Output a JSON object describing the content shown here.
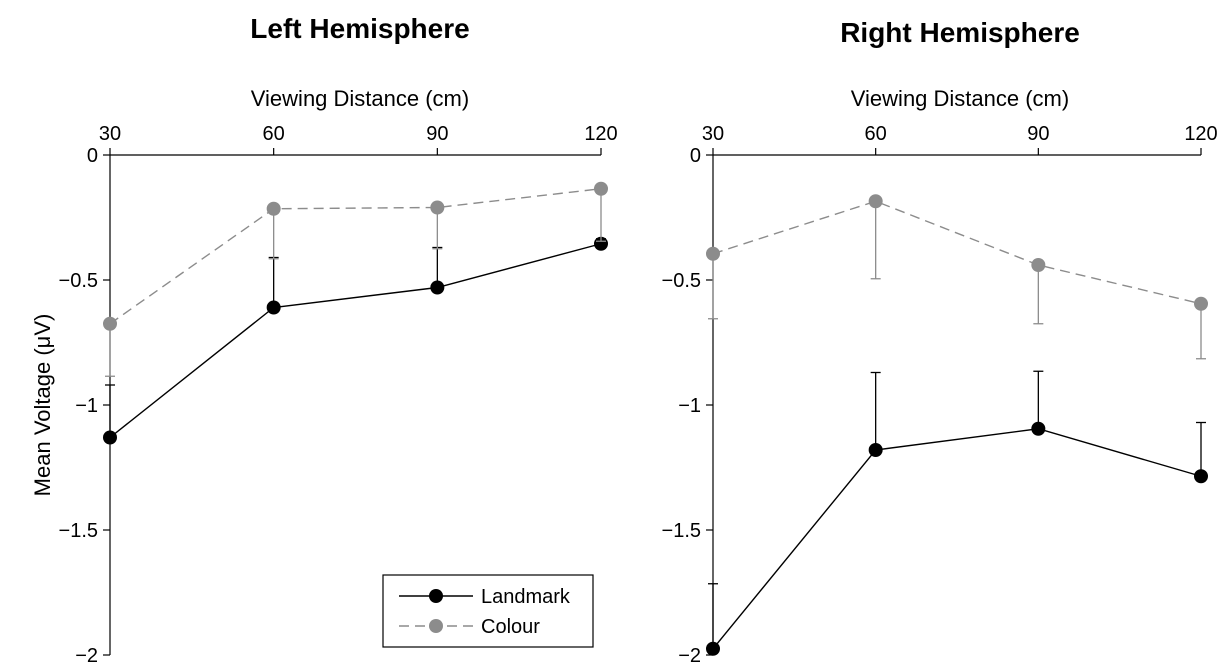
{
  "chart_data": [
    {
      "type": "line",
      "title": "Left Hemisphere",
      "xlabel": "Viewing Distance (cm)",
      "ylabel": "Mean Voltage (μV)",
      "x": [
        30,
        60,
        90,
        120
      ],
      "x_tick_labels": [
        "30",
        "60",
        "90",
        "120"
      ],
      "y_tick_values": [
        0,
        -0.5,
        -1,
        -1.5,
        -2
      ],
      "y_tick_labels": [
        "0",
        "−0.5",
        "−1",
        "−1.5",
        "−2"
      ],
      "xlim": [
        30,
        120
      ],
      "ylim": [
        -2,
        0
      ],
      "x_axis_position": "top",
      "grid": false,
      "legend": {
        "placement": "bottom-right"
      },
      "series": [
        {
          "name": "Landmark",
          "values": [
            -1.13,
            -0.61,
            -0.53,
            -0.355
          ],
          "error_upper": [
            -0.92,
            -0.41,
            -0.37,
            -0.335
          ],
          "color": "#000000",
          "line_style": "solid"
        },
        {
          "name": "Colour",
          "values": [
            -0.675,
            -0.215,
            -0.21,
            -0.135
          ],
          "error_lower": [
            -0.885,
            -0.415,
            -0.375,
            -0.345
          ],
          "color": "#8c8c8c",
          "line_style": "dashed"
        }
      ]
    },
    {
      "type": "line",
      "title": "Right Hemisphere",
      "xlabel": "Viewing Distance (cm)",
      "ylabel": "",
      "x": [
        30,
        60,
        90,
        120
      ],
      "x_tick_labels": [
        "30",
        "60",
        "90",
        "120"
      ],
      "y_tick_values": [
        0,
        -0.5,
        -1,
        -1.5,
        -2
      ],
      "y_tick_labels": [
        "0",
        "−0.5",
        "−1",
        "−1.5",
        "−2"
      ],
      "xlim": [
        30,
        120
      ],
      "ylim": [
        -2,
        0
      ],
      "x_axis_position": "top",
      "grid": false,
      "series": [
        {
          "name": "Landmark",
          "values": [
            -1.975,
            -1.18,
            -1.095,
            -1.285
          ],
          "error_upper": [
            -1.715,
            -0.87,
            -0.865,
            -1.07
          ],
          "color": "#000000",
          "line_style": "solid"
        },
        {
          "name": "Colour",
          "values": [
            -0.395,
            -0.185,
            -0.44,
            -0.595
          ],
          "error_lower": [
            -0.655,
            -0.495,
            -0.675,
            -0.815
          ],
          "color": "#8c8c8c",
          "line_style": "dashed"
        }
      ]
    }
  ]
}
